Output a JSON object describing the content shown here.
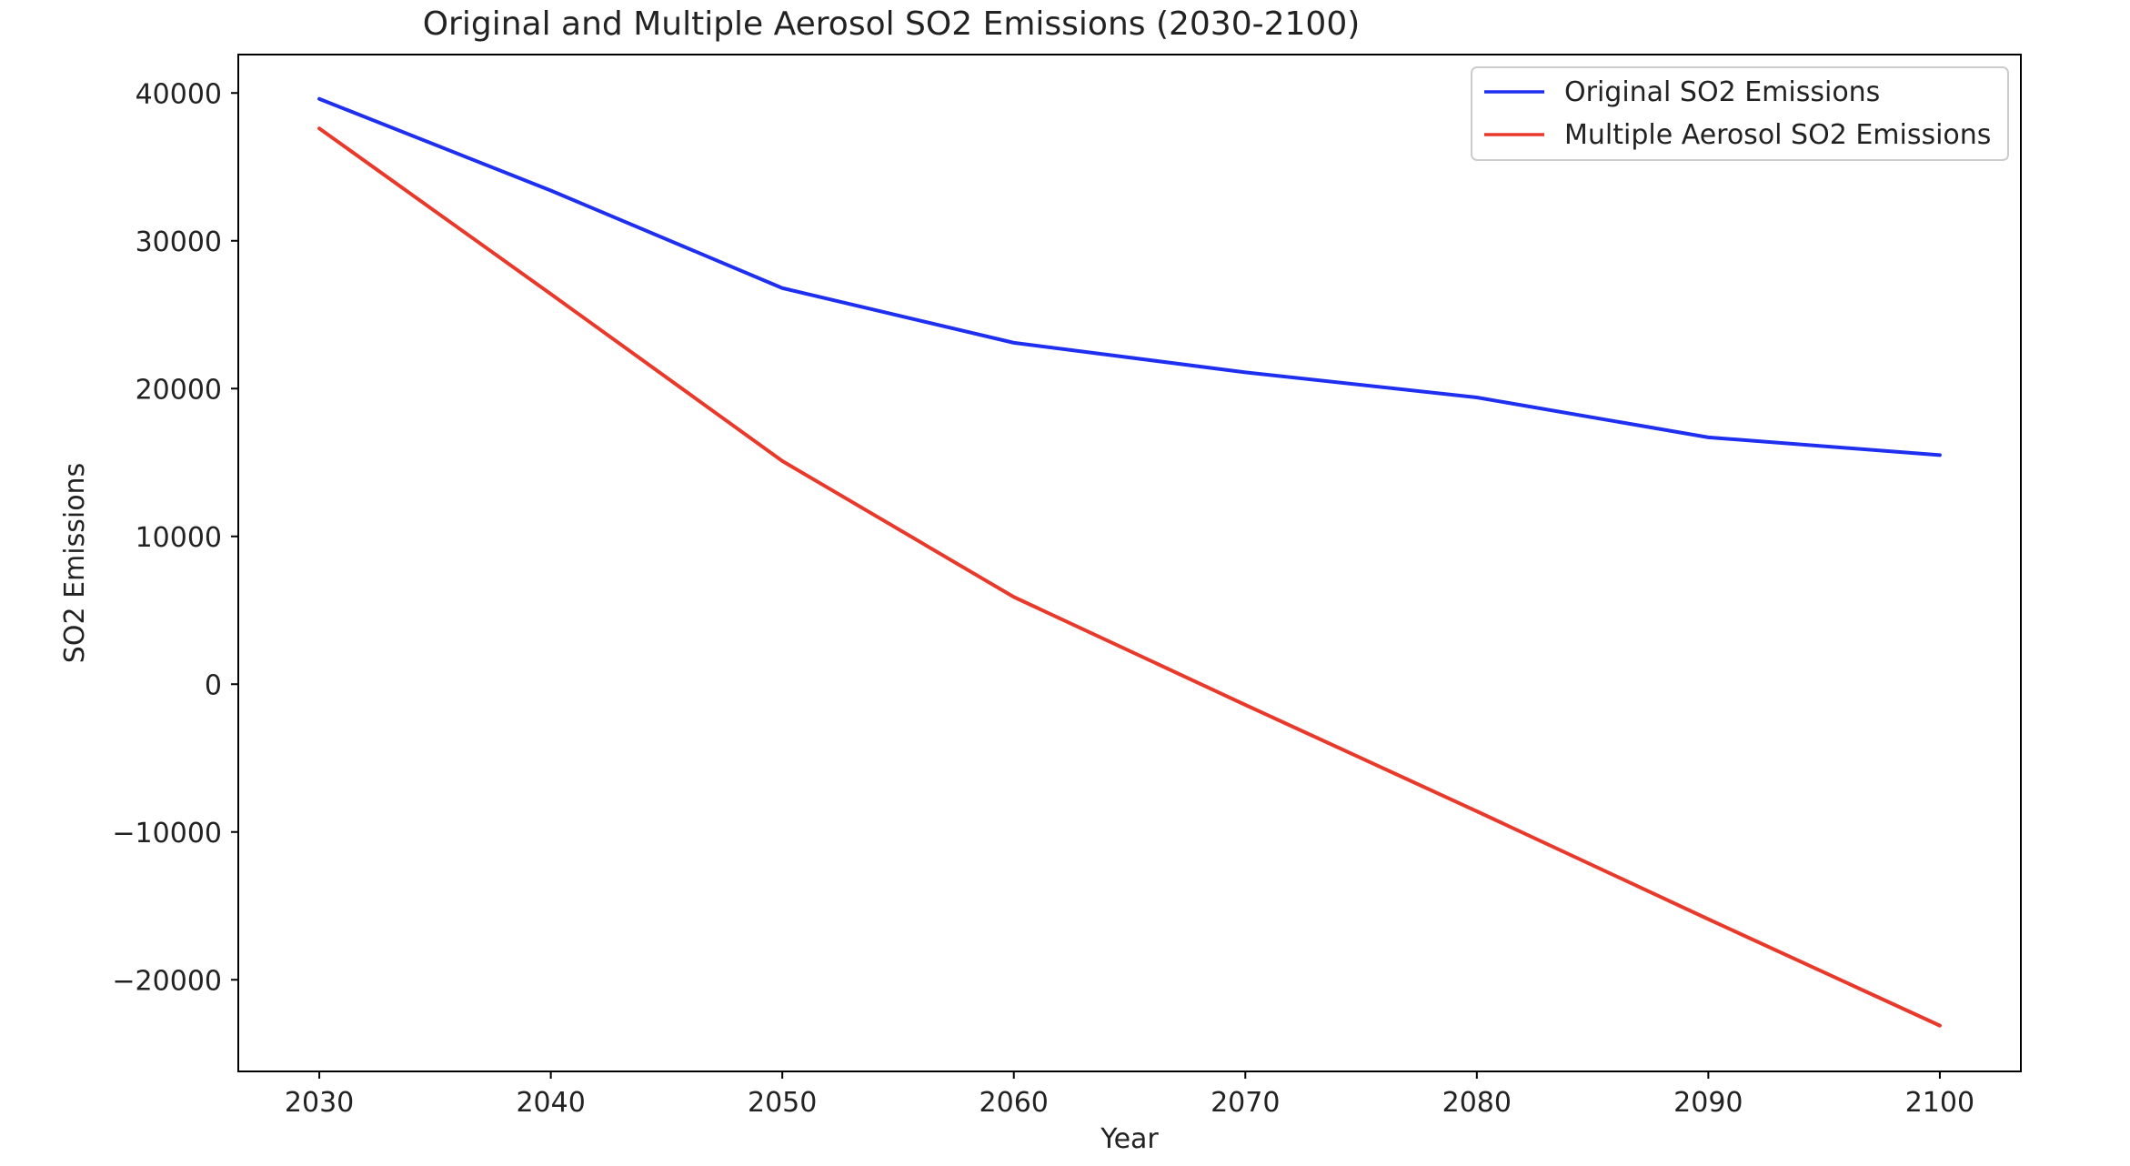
{
  "chart_data": {
    "type": "line",
    "title": "Original and Multiple Aerosol SO2 Emissions (2030-2100)",
    "xlabel": "Year",
    "ylabel": "SO2 Emissions",
    "x": [
      2030,
      2040,
      2050,
      2060,
      2070,
      2080,
      2090,
      2100
    ],
    "xticks": [
      "2030",
      "2040",
      "2050",
      "2060",
      "2070",
      "2080",
      "2090",
      "2100"
    ],
    "yticks": [
      {
        "value": 40000,
        "label": "40000"
      },
      {
        "value": 30000,
        "label": "30000"
      },
      {
        "value": 20000,
        "label": "20000"
      },
      {
        "value": 10000,
        "label": "10000"
      },
      {
        "value": 0,
        "label": "0"
      },
      {
        "value": -10000,
        "label": "−10000"
      },
      {
        "value": -20000,
        "label": "−20000"
      }
    ],
    "xlim": [
      2026.5,
      2103.5
    ],
    "ylim": [
      -26200,
      42600
    ],
    "grid": false,
    "legend_position": "top-right",
    "series": [
      {
        "name": "Original SO2 Emissions",
        "color": "#1f2ff0",
        "values": [
          39600,
          33400,
          26800,
          23100,
          21100,
          19400,
          16700,
          15500
        ]
      },
      {
        "name": "Multiple Aerosol SO2 Emissions",
        "color": "#e8392b",
        "values": [
          37600,
          26400,
          15100,
          5900,
          -1400,
          -8600,
          -15900,
          -23100
        ]
      }
    ]
  }
}
